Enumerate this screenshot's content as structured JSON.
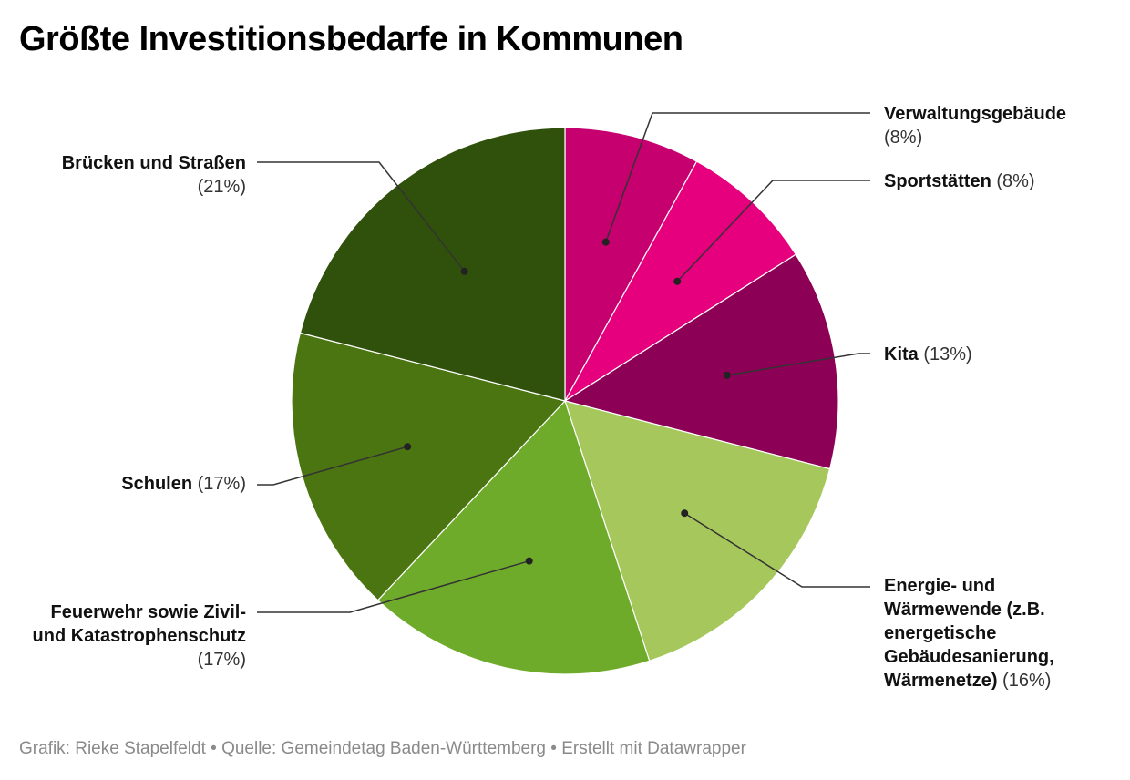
{
  "chart_data": {
    "type": "pie",
    "title": "Größte Investitionsbedarfe in Kommunen",
    "categories": [
      "Verwaltungsgebäude",
      "Sportstätten",
      "Kita",
      "Energie- und Wärmewende (z.B. energetische Gebäudesanierung, Wärmenetze)",
      "Feuerwehr sowie Zivil- und Katastrophenschutz",
      "Schulen",
      "Brücken und Straßen"
    ],
    "values": [
      8,
      8,
      13,
      16,
      17,
      17,
      21
    ],
    "value_labels": [
      "(8%)",
      "(8%)",
      "(13%)",
      "(16%)",
      "(17%)",
      "(17%)",
      "(21%)"
    ],
    "colors": [
      "#c6006e",
      "#e6007e",
      "#8c0056",
      "#a5c75b",
      "#6fab2a",
      "#4b7511",
      "#2f510b"
    ],
    "start_angle": "12 o'clock",
    "direction": "clockwise",
    "label_style": "callouts with leader lines"
  },
  "footer": {
    "text": "Grafik: Rieke Stapelfeldt • Quelle: Gemeindetag Baden-Württemberg • Erstellt mit Datawrapper"
  }
}
